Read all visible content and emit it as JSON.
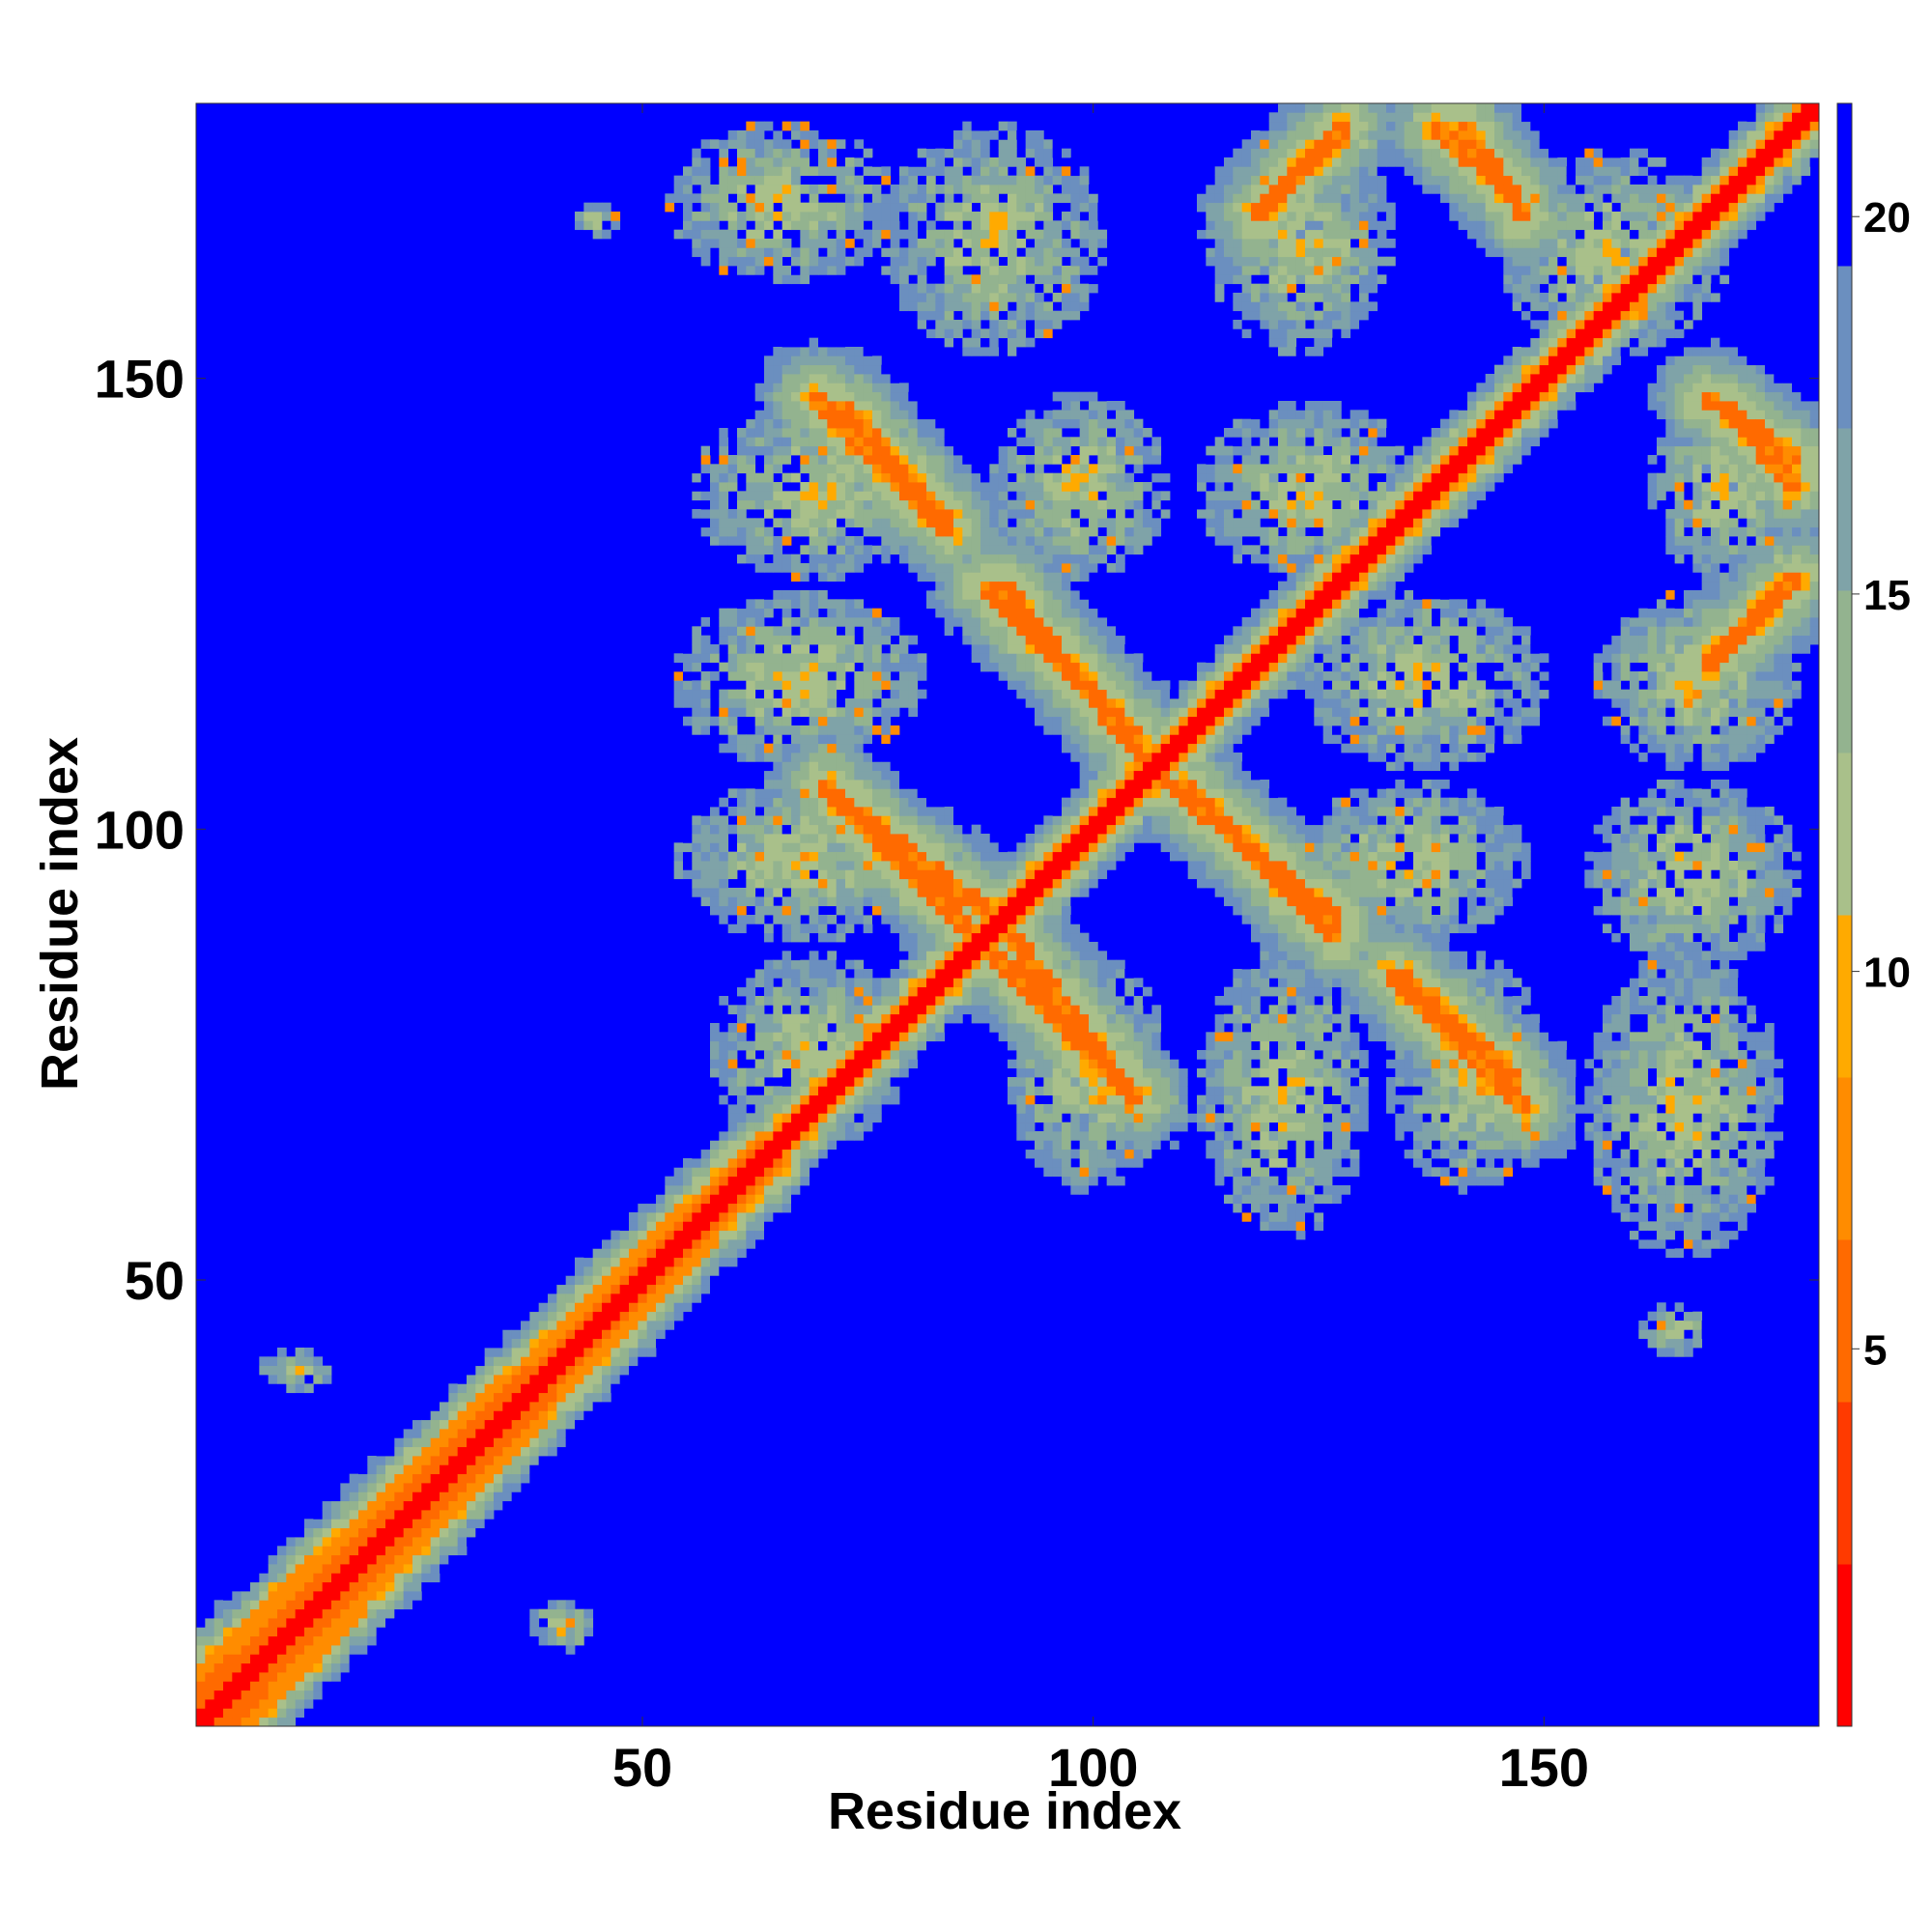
{
  "chart_data": {
    "type": "heatmap",
    "title": "",
    "xlabel": "Residue index",
    "ylabel": "Residue index",
    "x_range": [
      1,
      180
    ],
    "y_range": [
      1,
      180
    ],
    "x_ticks": [
      50,
      100,
      150
    ],
    "y_ticks": [
      50,
      100,
      150
    ],
    "colorbar": {
      "range": [
        0,
        21.5
      ],
      "ticks": [
        5,
        10,
        15,
        20
      ],
      "colors": [
        "#ff0000",
        "#ff3a00",
        "#ff6a00",
        "#ff8c00",
        "#ffaa00",
        "#a9c08a",
        "#93b38f",
        "#7fa3a8",
        "#6b8fbf",
        "#0000ff"
      ],
      "saturated_color": "#0000ff"
    },
    "structure": {
      "diagonal": {
        "start": 1,
        "end": 180
      },
      "anti_diagonal_contacts": [
        {
          "from": [
            72,
            103
          ],
          "to": [
            88,
            91
          ]
        },
        {
          "from": [
            89,
            86
          ],
          "to": [
            105,
            70
          ]
        },
        {
          "from": [
            88,
            127
          ],
          "to": [
            105,
            110
          ]
        },
        {
          "from": [
            106,
            107
          ],
          "to": [
            127,
            90
          ]
        },
        {
          "from": [
            133,
            84
          ],
          "to": [
            148,
            69
          ]
        },
        {
          "from": [
            72,
            147
          ],
          "to": [
            84,
            134
          ]
        },
        {
          "from": [
            120,
            170
          ],
          "to": [
            128,
            178
          ]
        },
        {
          "from": [
            141,
            178
          ],
          "to": [
            148,
            168
          ]
        },
        {
          "from": [
            170,
            147
          ],
          "to": [
            178,
            138
          ]
        },
        {
          "from": [
            168,
            118
          ],
          "to": [
            176,
            126
          ]
        }
      ],
      "contact_blocks": [
        {
          "x": [
            53,
            78
          ],
          "y": [
            161,
            178
          ]
        },
        {
          "x": [
            77,
            101
          ],
          "y": [
            153,
            178
          ]
        },
        {
          "x": [
            113,
            133
          ],
          "y": [
            153,
            178
          ]
        },
        {
          "x": [
            145,
            170
          ],
          "y": [
            153,
            175
          ]
        },
        {
          "x": [
            56,
            82
          ],
          "y": [
            128,
            147
          ]
        },
        {
          "x": [
            89,
            108
          ],
          "y": [
            128,
            148
          ]
        },
        {
          "x": [
            112,
            136
          ],
          "y": [
            128,
            147
          ]
        },
        {
          "x": [
            162,
            178
          ],
          "y": [
            128,
            148
          ]
        },
        {
          "x": [
            54,
            81
          ],
          "y": [
            107,
            126
          ]
        },
        {
          "x": [
            123,
            150
          ],
          "y": [
            107,
            126
          ]
        },
        {
          "x": [
            156,
            178
          ],
          "y": [
            107,
            126
          ]
        },
        {
          "x": [
            54,
            81
          ],
          "y": [
            88,
            105
          ]
        },
        {
          "x": [
            123,
            148
          ],
          "y": [
            88,
            105
          ]
        },
        {
          "x": [
            155,
            178
          ],
          "y": [
            85,
            105
          ]
        },
        {
          "x": [
            58,
            79
          ],
          "y": [
            65,
            86
          ]
        },
        {
          "x": [
            91,
            108
          ],
          "y": [
            60,
            86
          ]
        },
        {
          "x": [
            112,
            130
          ],
          "y": [
            55,
            86
          ]
        },
        {
          "x": [
            133,
            150
          ],
          "y": [
            60,
            86
          ]
        },
        {
          "x": [
            155,
            176
          ],
          "y": [
            53,
            86
          ]
        },
        {
          "x": [
            161,
            168
          ],
          "y": [
            42,
            47
          ]
        },
        {
          "x": [
            8,
            15
          ],
          "y": [
            38,
            42
          ]
        },
        {
          "x": [
            38,
            44
          ],
          "y": [
            9,
            14
          ]
        },
        {
          "x": [
            43,
            47
          ],
          "y": [
            166,
            169
          ]
        }
      ]
    }
  }
}
